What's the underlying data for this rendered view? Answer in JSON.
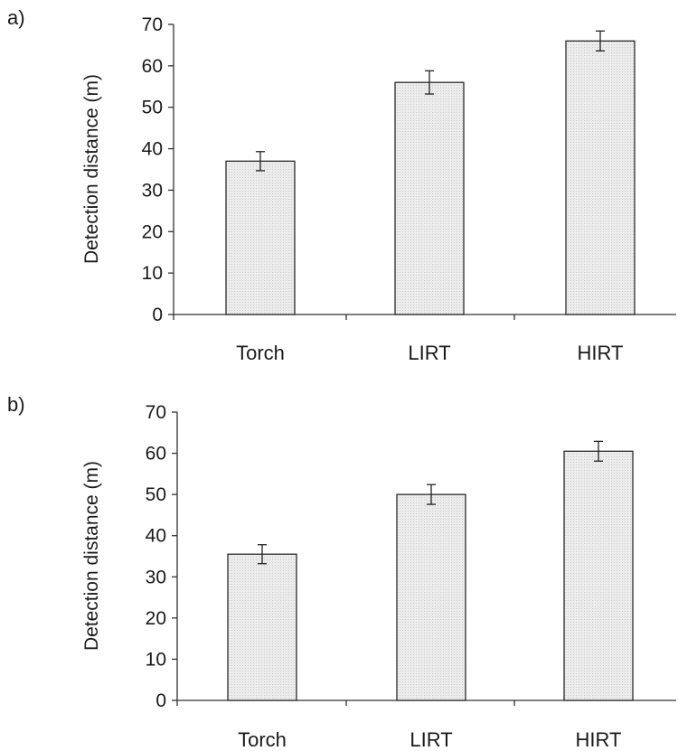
{
  "chart_data": [
    {
      "type": "bar",
      "panel_label": "a)",
      "categories": [
        "Torch",
        "LIRT",
        "HIRT"
      ],
      "values": [
        37,
        56,
        66
      ],
      "error": [
        2.3,
        2.8,
        2.4
      ],
      "ylabel": "Detection distance (m)",
      "ylim": [
        0,
        70
      ],
      "yticks": [
        "0",
        "10",
        "20",
        "30",
        "40",
        "50",
        "60",
        "70"
      ],
      "bar_color": "#e6e6e6",
      "grid": false
    },
    {
      "type": "bar",
      "panel_label": "b)",
      "categories": [
        "Torch",
        "LIRT",
        "HIRT"
      ],
      "values": [
        35.5,
        50,
        60.5
      ],
      "error": [
        2.3,
        2.4,
        2.4
      ],
      "ylabel": "Detection distance (m)",
      "ylim": [
        0,
        70
      ],
      "yticks": [
        "0",
        "10",
        "20",
        "30",
        "40",
        "50",
        "60",
        "70"
      ],
      "bar_color": "#e6e6e6",
      "grid": false
    }
  ]
}
